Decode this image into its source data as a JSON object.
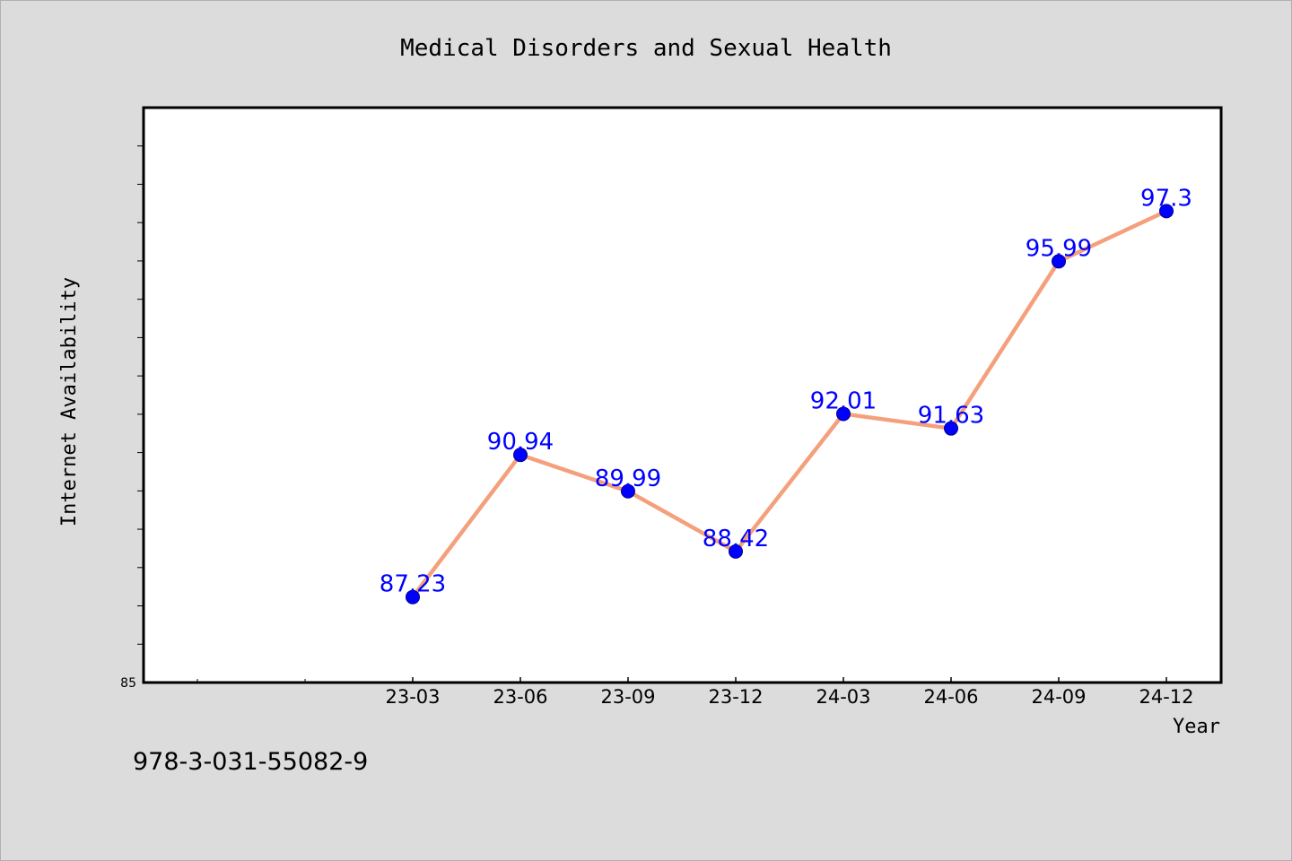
{
  "chart_data": {
    "type": "line",
    "title": "Medical Disorders and Sexual Health",
    "xlabel": "Year",
    "ylabel": "Internet Availability",
    "categories": [
      "23-03",
      "23-06",
      "23-09",
      "23-12",
      "24-03",
      "24-06",
      "24-09",
      "24-12"
    ],
    "series": [
      {
        "values": [
          87.23,
          90.94,
          89.99,
          88.42,
          92.01,
          91.63,
          95.99,
          97.3
        ]
      }
    ],
    "data_labels": [
      "87.23",
      "90.94",
      "89.99",
      "88.42",
      "92.01",
      "91.63",
      "95.99",
      "97.3"
    ],
    "ylim": [
      85,
      100
    ],
    "y_tick_labels": [
      "85"
    ],
    "grid": false,
    "legend": "none",
    "colors": {
      "line": "#f4a07c",
      "marker": "#0000ff",
      "marker_edge": "#00008b",
      "label": "#0000ff",
      "plot_bg": "#ffffff",
      "figure_bg": "#dcdcdc"
    }
  },
  "footer": {
    "isbn": "978-3-031-55082-9"
  }
}
